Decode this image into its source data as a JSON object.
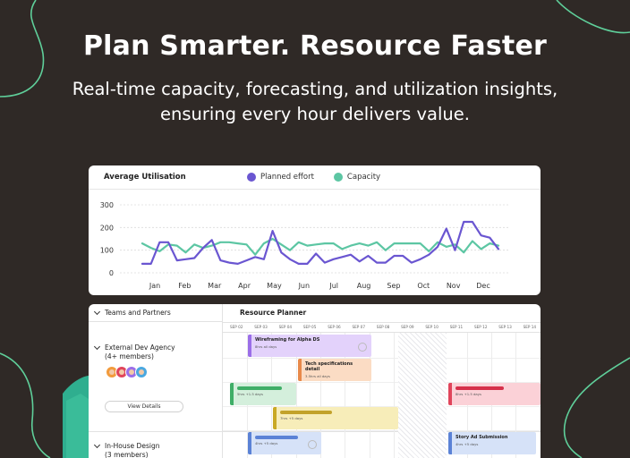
{
  "hero": {
    "headline": "Plan Smarter. Resource Faster",
    "subline": "Real-time capacity, forecasting, and utilization insights, ensuring every hour delivers value."
  },
  "chart_card": {
    "title": "Average Utilisation",
    "legend": [
      {
        "label": "Planned effort",
        "color": "#6a56d1"
      },
      {
        "label": "Capacity",
        "color": "#5cc6a3"
      }
    ]
  },
  "chart_data": {
    "type": "line",
    "x_labels": [
      "Jan",
      "Feb",
      "Mar",
      "Apr",
      "May",
      "Jun",
      "Jul",
      "Aug",
      "Sep",
      "Oct",
      "Nov",
      "Dec"
    ],
    "y_ticks": [
      300,
      200,
      100,
      0
    ],
    "ylim": [
      0,
      300
    ],
    "grid": true,
    "series": [
      {
        "name": "Planned effort",
        "color": "#6a56d1",
        "values": [
          40,
          40,
          135,
          135,
          55,
          60,
          65,
          110,
          145,
          55,
          45,
          40,
          55,
          70,
          60,
          185,
          90,
          60,
          40,
          40,
          85,
          45,
          60,
          70,
          80,
          50,
          75,
          45,
          45,
          75,
          75,
          45,
          60,
          80,
          115,
          195,
          100,
          225,
          225,
          165,
          155,
          105
        ]
      },
      {
        "name": "Capacity",
        "color": "#5cc6a3",
        "values": [
          130,
          110,
          95,
          125,
          120,
          90,
          125,
          110,
          120,
          135,
          135,
          130,
          125,
          80,
          130,
          150,
          125,
          100,
          135,
          120,
          125,
          130,
          130,
          105,
          120,
          130,
          120,
          135,
          100,
          130,
          130,
          130,
          130,
          95,
          135,
          115,
          125,
          90,
          140,
          105,
          130,
          120
        ]
      }
    ]
  },
  "planner": {
    "left_header": "Teams and Partners",
    "title": "Resource Planner",
    "dates": [
      "SEP 02",
      "SEP 03",
      "SEP 04",
      "SEP 05",
      "SEP 06",
      "SEP 07",
      "SEP 08",
      "SEP 09",
      "SEP 10",
      "SEP 11",
      "SEP 12",
      "SEP 13",
      "SEP 14"
    ],
    "groups": [
      {
        "name": "External Dev Agency",
        "count": "(4+ members)",
        "button": "View Details"
      },
      {
        "name": "In-House Design",
        "count": "(3 members)"
      }
    ],
    "bars": [
      {
        "title": "Wireframing for Alpha DS",
        "sub": "8hrs all days",
        "color": "#e3d2fb",
        "edge": "#9b6ee8"
      },
      {
        "title": "Tech specifications detail",
        "sub": "3.5hrs all days",
        "color": "#fbdcc4",
        "edge": "#e8894a"
      },
      {
        "title": "",
        "sub": "5hrs +1.5 days",
        "color": "#d4efdc",
        "edge": "#3fae67",
        "pill": "#3fae67"
      },
      {
        "title": "",
        "sub": "8hrs +1.5 days",
        "color": "#fbd1d7",
        "edge": "#e0455b",
        "pill": "#d6304a"
      },
      {
        "title": "",
        "sub": "7hrs +5 days",
        "color": "#f7edb9",
        "edge": "#c9a925",
        "pill": "#c2a22a"
      },
      {
        "title": "",
        "sub": "4hrs +5 days",
        "color": "#d6e2f8",
        "edge": "#5b82d6",
        "pill": "#5b82d6"
      },
      {
        "title": "Story Ad Submission",
        "sub": "4hrs +5 days",
        "color": "#d6e2f8",
        "edge": "#5b82d6"
      }
    ]
  }
}
